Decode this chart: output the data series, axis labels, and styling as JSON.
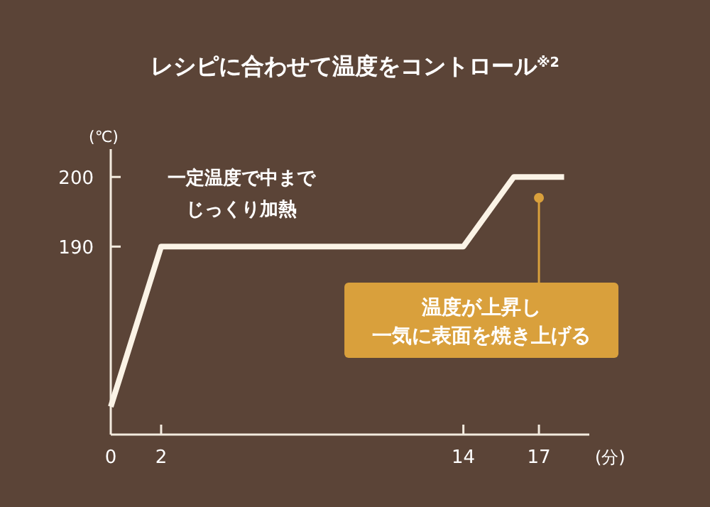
{
  "chart_data": {
    "type": "line",
    "title": "レシピに合わせて温度をコントロール$^{※2}$",
    "xlabel": "(分)",
    "ylabel": "(℃)",
    "x": [
      0,
      2,
      14,
      16,
      18
    ],
    "series": [
      {
        "color": "#fbf3e6",
        "values": [
          167,
          190,
          190,
          200,
          200
        ]
      }
    ],
    "xlim": [
      0,
      19
    ],
    "ylim": [
      163,
      204
    ],
    "xticks": [
      0,
      2,
      14,
      17
    ],
    "yticks": [
      190,
      200
    ],
    "grid": false,
    "marker": "none",
    "line_style": "solid",
    "annotations": [
      "一定温度で中までじっくり加熱",
      {
        "text": "温度が上昇し一気に表面を焼き上げる",
        "x": 17,
        "y": 197
      }
    ]
  }
}
